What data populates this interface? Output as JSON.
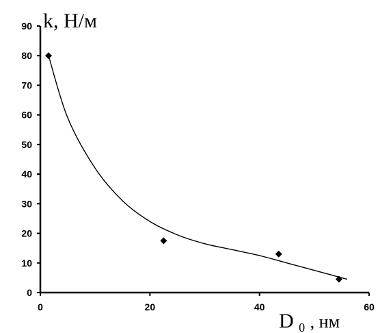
{
  "chart_data": {
    "type": "scatter",
    "x_unit_label_main": "D",
    "x_unit_label_sub": "0",
    "x_unit_label_rest": ", нм",
    "y_unit_label": "k, Н/м",
    "xlim": [
      0,
      60
    ],
    "ylim": [
      0,
      90
    ],
    "x_ticks": [
      0,
      20,
      40,
      60
    ],
    "y_ticks": [
      0,
      10,
      20,
      30,
      40,
      50,
      60,
      70,
      80,
      90
    ],
    "grid": false,
    "points": [
      {
        "x": 1.5,
        "y": 80
      },
      {
        "x": 22.5,
        "y": 17.5
      },
      {
        "x": 43.5,
        "y": 13
      },
      {
        "x": 54.5,
        "y": 4.5
      }
    ],
    "trendline": {
      "x": [
        1.5,
        5,
        10,
        15,
        20,
        25,
        30,
        35,
        40,
        45,
        50,
        56
      ],
      "y": [
        80,
        59,
        42,
        31,
        24,
        19.5,
        16.5,
        14.5,
        12.5,
        10,
        7.5,
        4.5
      ]
    },
    "colors": {
      "marks": "#000000",
      "axis": "#000000"
    }
  }
}
